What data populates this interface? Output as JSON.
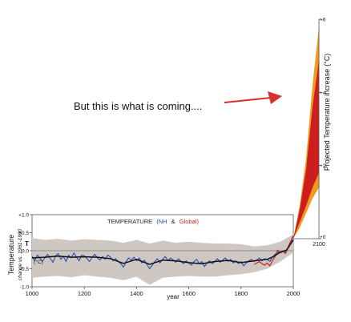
{
  "annotation": {
    "text": "But this is what is coming....",
    "arrow_color": "#d83030"
  },
  "chart_data": [
    {
      "type": "line",
      "title_parts": [
        "TEMPERATURE",
        "(NH",
        "&",
        "Global)"
      ],
      "title_colors": {
        "main": "#222222",
        "nh": "#2a4fb0",
        "global": "#cc2222"
      },
      "ylabel": "Temperature",
      "ylabel_sub": "change vs. 1961-1990",
      "y_symbol": "T",
      "y_unit": "(°C)",
      "xlabel": "year",
      "xlim": [
        1000,
        2000
      ],
      "ylim": [
        -1.0,
        1.0
      ],
      "x_ticks": [
        "1000",
        "1200",
        "1400",
        "1600",
        "1800",
        "2000"
      ],
      "x_tick_values": [
        1000,
        1200,
        1400,
        1600,
        1800,
        2000
      ],
      "y_ticks": [
        "+1.0",
        "+0.5",
        "0.0",
        "-0.5",
        "-1.0"
      ],
      "y_tick_values": [
        1.0,
        0.5,
        0.0,
        -0.5,
        -1.0
      ],
      "colors": {
        "uncertainty": "#cfc8c2",
        "nh": "#2a4fb0",
        "global": "#cc2222",
        "smooth": "#111111",
        "zero": "#777777"
      },
      "series": [
        {
          "role": "uncertainty",
          "x": [
            1000,
            1050,
            1100,
            1150,
            1200,
            1250,
            1300,
            1350,
            1400,
            1450,
            1500,
            1550,
            1600,
            1650,
            1700,
            1750,
            1800,
            1850,
            1900,
            1950,
            2000
          ],
          "upper": [
            0.35,
            0.3,
            0.33,
            0.28,
            0.32,
            0.3,
            0.28,
            0.22,
            0.3,
            0.2,
            0.28,
            0.22,
            0.25,
            0.22,
            0.2,
            0.2,
            0.18,
            0.12,
            0.15,
            0.25,
            0.45
          ],
          "lower": [
            -0.75,
            -0.72,
            -0.7,
            -0.74,
            -0.68,
            -0.72,
            -0.75,
            -0.82,
            -0.72,
            -0.95,
            -0.75,
            -0.72,
            -0.7,
            -0.72,
            -0.72,
            -0.68,
            -0.65,
            -0.6,
            -0.5,
            -0.3,
            -0.05
          ]
        },
        {
          "role": "nh",
          "x": [
            1000,
            1010,
            1020,
            1030,
            1040,
            1050,
            1060,
            1070,
            1080,
            1090,
            1100,
            1110,
            1120,
            1130,
            1140,
            1150,
            1160,
            1170,
            1180,
            1190,
            1200,
            1210,
            1220,
            1230,
            1240,
            1250,
            1260,
            1270,
            1280,
            1290,
            1300,
            1310,
            1320,
            1330,
            1340,
            1350,
            1360,
            1370,
            1380,
            1390,
            1400,
            1410,
            1420,
            1430,
            1440,
            1450,
            1460,
            1470,
            1480,
            1490,
            1500,
            1510,
            1520,
            1530,
            1540,
            1550,
            1560,
            1570,
            1580,
            1590,
            1600,
            1610,
            1620,
            1630,
            1640,
            1650,
            1660,
            1670,
            1680,
            1690,
            1700,
            1710,
            1720,
            1730,
            1740,
            1750,
            1760,
            1770,
            1780,
            1790,
            1800,
            1810,
            1820,
            1830,
            1840,
            1850,
            1860,
            1870,
            1880,
            1890,
            1900,
            1910,
            1920,
            1930,
            1940,
            1950,
            1960,
            1970,
            1980,
            1990,
            2000
          ],
          "y": [
            -0.15,
            -0.28,
            -0.12,
            -0.2,
            -0.3,
            -0.18,
            -0.1,
            -0.22,
            -0.32,
            -0.14,
            -0.08,
            -0.24,
            -0.16,
            -0.3,
            -0.12,
            -0.2,
            -0.06,
            -0.18,
            -0.28,
            -0.12,
            -0.14,
            -0.22,
            -0.3,
            -0.18,
            -0.1,
            -0.2,
            -0.26,
            -0.16,
            -0.24,
            -0.12,
            -0.18,
            -0.28,
            -0.22,
            -0.3,
            -0.36,
            -0.46,
            -0.3,
            -0.2,
            -0.26,
            -0.18,
            -0.28,
            -0.2,
            -0.34,
            -0.26,
            -0.38,
            -0.5,
            -0.4,
            -0.3,
            -0.22,
            -0.34,
            -0.24,
            -0.16,
            -0.28,
            -0.2,
            -0.26,
            -0.32,
            -0.22,
            -0.3,
            -0.36,
            -0.28,
            -0.34,
            -0.4,
            -0.3,
            -0.24,
            -0.36,
            -0.3,
            -0.44,
            -0.34,
            -0.28,
            -0.36,
            -0.3,
            -0.22,
            -0.32,
            -0.26,
            -0.2,
            -0.3,
            -0.24,
            -0.34,
            -0.28,
            -0.36,
            -0.3,
            -0.42,
            -0.34,
            -0.28,
            -0.24,
            -0.3,
            -0.26,
            -0.2,
            -0.28,
            -0.22,
            -0.24,
            -0.3,
            -0.18,
            -0.1,
            -0.04,
            -0.06,
            -0.02,
            -0.04,
            0.1,
            0.22,
            0.4
          ]
        },
        {
          "role": "global",
          "x": [
            1850,
            1860,
            1870,
            1880,
            1890,
            1900,
            1910,
            1920,
            1930,
            1940,
            1950,
            1960,
            1970,
            1980,
            1990,
            2000
          ],
          "y": [
            -0.38,
            -0.34,
            -0.3,
            -0.36,
            -0.4,
            -0.34,
            -0.42,
            -0.28,
            -0.16,
            0.02,
            -0.06,
            -0.02,
            -0.08,
            0.1,
            0.26,
            0.42
          ]
        },
        {
          "role": "smooth",
          "x": [
            1000,
            1050,
            1100,
            1150,
            1200,
            1250,
            1300,
            1350,
            1400,
            1450,
            1500,
            1550,
            1600,
            1650,
            1700,
            1750,
            1800,
            1850,
            1900,
            1925,
            1950,
            1975,
            2000
          ],
          "y": [
            -0.2,
            -0.18,
            -0.15,
            -0.18,
            -0.17,
            -0.18,
            -0.22,
            -0.35,
            -0.24,
            -0.38,
            -0.26,
            -0.28,
            -0.33,
            -0.36,
            -0.3,
            -0.27,
            -0.33,
            -0.28,
            -0.24,
            -0.16,
            -0.04,
            0.02,
            0.3
          ]
        }
      ]
    },
    {
      "type": "area",
      "ylabel": "Projected Temperature increase",
      "y_unit": "(°C)",
      "xlim": [
        2000,
        2100
      ],
      "ylim": [
        0,
        6
      ],
      "x_ticks": [
        "2100"
      ],
      "x_tick_values": [
        2100
      ],
      "y_ticks": [
        "+0",
        "+2",
        "+4",
        "+6"
      ],
      "y_tick_values": [
        0,
        2,
        4,
        6
      ],
      "colors": {
        "outer": "#f29a1f",
        "inner": "#cc1e1e",
        "axis": "#555555"
      },
      "series": [
        {
          "role": "outer_band",
          "x": [
            2000,
            2025,
            2050,
            2075,
            2100
          ],
          "upper": [
            0.0,
            0.9,
            2.2,
            4.2,
            5.8
          ],
          "lower": [
            0.0,
            0.3,
            0.7,
            1.1,
            1.4
          ]
        },
        {
          "role": "inner_band",
          "x": [
            2000,
            2025,
            2050,
            2075,
            2100
          ],
          "upper": [
            0.0,
            0.8,
            1.9,
            3.6,
            4.9
          ],
          "lower": [
            0.0,
            0.45,
            0.9,
            1.4,
            1.8
          ]
        }
      ]
    }
  ]
}
